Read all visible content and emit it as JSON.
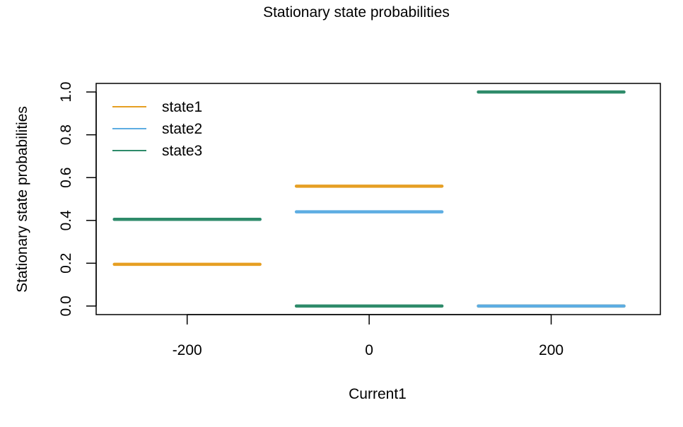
{
  "chart_data": {
    "type": "line",
    "title": "Stationary state probabilities",
    "xlabel": "Current1",
    "ylabel": "Stationary state probabilities",
    "xlim": [
      -300,
      320
    ],
    "ylim": [
      -0.04,
      1.04
    ],
    "x_ticks": [
      -200,
      0,
      200
    ],
    "x_tick_labels": [
      "-200",
      "0",
      "200"
    ],
    "y_ticks": [
      0.0,
      0.2,
      0.4,
      0.6,
      0.8,
      1.0
    ],
    "y_tick_labels": [
      "0.0",
      "0.2",
      "0.4",
      "0.6",
      "0.8",
      "1.0"
    ],
    "categories": [
      -200,
      0,
      200
    ],
    "segment_halfwidth": 80,
    "grid": false,
    "legend_position": "top-left",
    "series": [
      {
        "name": "state1",
        "color": "#E69F23",
        "values": [
          0.195,
          0.56,
          0.0
        ]
      },
      {
        "name": "state2",
        "color": "#5DADE2",
        "values": [
          0.405,
          0.44,
          0.0
        ]
      },
      {
        "name": "state3",
        "color": "#2E8B6A",
        "values": [
          0.405,
          0.0,
          1.0
        ]
      }
    ]
  }
}
